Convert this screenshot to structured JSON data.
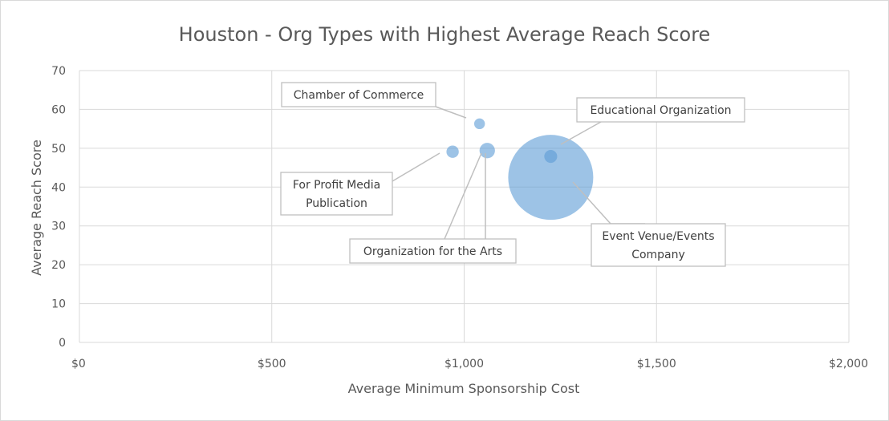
{
  "chart_data": {
    "type": "scatter",
    "subtype": "bubble",
    "title": "Houston - Org Types with Highest Average Reach Score",
    "xlabel": "Average Minimum Sponsorship Cost",
    "ylabel": "Average Reach Score",
    "xlim": [
      0,
      2000
    ],
    "ylim": [
      0,
      70
    ],
    "x_ticks": [
      0,
      500,
      1000,
      1500,
      2000
    ],
    "x_tick_labels": [
      "$0",
      "$500",
      "$1,000",
      "$1,500",
      "$2,000"
    ],
    "y_ticks": [
      0,
      10,
      20,
      30,
      40,
      50,
      60,
      70
    ],
    "y_tick_labels": [
      "0",
      "10",
      "20",
      "30",
      "40",
      "50",
      "60",
      "70"
    ],
    "grid": true,
    "legend": "none",
    "bubble_color": "#5b9bd5",
    "points": [
      {
        "label": "Event Venue/Events Company",
        "label_lines": [
          "Event Venue/Events",
          "Company"
        ],
        "x": 1225,
        "y": 42.5,
        "size": 100
      },
      {
        "label": "Chamber of Commerce",
        "label_lines": [
          "Chamber of Commerce"
        ],
        "x": 1040,
        "y": 56.3,
        "size": 1.6
      },
      {
        "label": "For Profit Media Publication",
        "label_lines": [
          "For Profit Media",
          "Publication"
        ],
        "x": 970,
        "y": 49.1,
        "size": 2.1
      },
      {
        "label": "Organization for the Arts",
        "label_lines": [
          "Organization for the Arts"
        ],
        "x": 1060,
        "y": 49.4,
        "size": 3.3
      },
      {
        "label": "Educational Organization",
        "label_lines": [
          "Educational Organization"
        ],
        "x": 1225,
        "y": 47.9,
        "size": 2.3
      }
    ]
  }
}
